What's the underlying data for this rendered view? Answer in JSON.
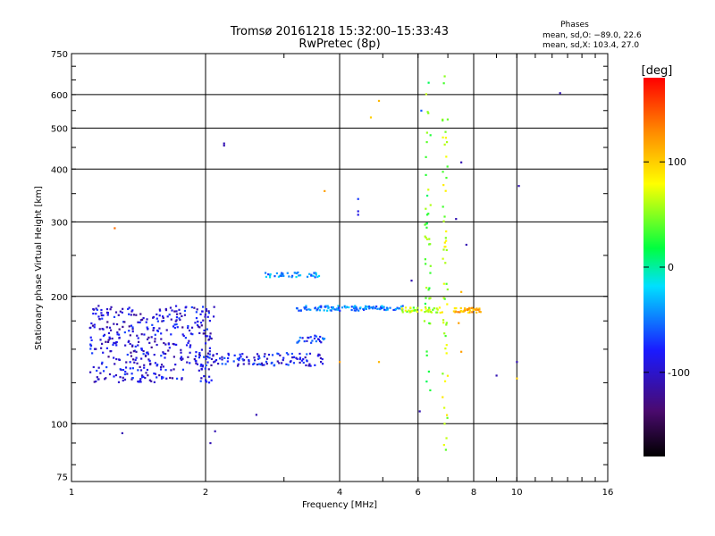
{
  "chart_data": {
    "type": "scatter",
    "title": "Tromsø 20161218 15:32:00–15:33:43",
    "subtitle": "RwPretec (8p)",
    "xlabel": "Frequency [MHz]",
    "ylabel": "Stationary phase Virtual Height [km]",
    "x_scale": "log",
    "y_scale": "log",
    "xlim": [
      1,
      16
    ],
    "ylim": [
      73,
      750
    ],
    "x_ticks": [
      1,
      2,
      4,
      6,
      8,
      10,
      16
    ],
    "y_ticks": [
      75,
      100,
      200,
      300,
      400,
      500,
      600,
      750
    ],
    "grid_x": [
      2,
      4,
      6,
      8,
      10
    ],
    "grid_y": [
      100,
      200,
      300,
      400,
      500,
      600
    ],
    "grid": true,
    "phases_box": {
      "title": "Phases",
      "line_o": "mean, sd,O: −89.0, 22.6",
      "line_x": "mean, sd,X: 103.4, 27.0"
    },
    "colorbar": {
      "label": "[deg]",
      "ticks": [
        100,
        0,
        -100
      ],
      "range": [
        -180,
        180
      ]
    },
    "clusters": [
      {
        "region": "low-band scatter",
        "x_range": [
          1.1,
          2.1
        ],
        "y_range": [
          125,
          190
        ],
        "phase": -95,
        "count": 420
      },
      {
        "region": "trace 2.0-3.7 MHz",
        "x_range": [
          2.0,
          3.7
        ],
        "y_range": [
          137,
          147
        ],
        "phase": -85,
        "count": 110
      },
      {
        "region": "trace 3.2-3.7 MHz",
        "x_range": [
          3.2,
          3.7
        ],
        "y_range": [
          155,
          162
        ],
        "phase": -70,
        "count": 25
      },
      {
        "region": "F layer 3.2-5.5 MHz",
        "x_range": [
          3.2,
          5.6
        ],
        "y_range": [
          185,
          190
        ],
        "phase": -50,
        "count": 110
      },
      {
        "region": "F layer 5.5-6.8 MHz",
        "x_range": [
          5.5,
          6.8
        ],
        "y_range": [
          183,
          189
        ],
        "phase": 60,
        "count": 40
      },
      {
        "region": "F layer 7.2-8.3 MHz",
        "x_range": [
          7.2,
          8.3
        ],
        "y_range": [
          183,
          188
        ],
        "phase": 110,
        "count": 40
      },
      {
        "region": "E-region trace 2.7-3.6 MHz",
        "x_range": [
          2.7,
          3.6
        ],
        "y_range": [
          222,
          228
        ],
        "phase": -40,
        "count": 40
      },
      {
        "region": "column 6.3 MHz",
        "x_range": [
          6.2,
          6.4
        ],
        "y_range": [
          120,
          650
        ],
        "phase": 40,
        "count": 45
      },
      {
        "region": "column 6.9 MHz",
        "x_range": [
          6.8,
          7.0
        ],
        "y_range": [
          80,
          680
        ],
        "phase": 60,
        "count": 55
      }
    ],
    "points": [
      {
        "x": 2.2,
        "y": 455,
        "phase": -110
      },
      {
        "x": 2.2,
        "y": 460,
        "phase": -110
      },
      {
        "x": 4.4,
        "y": 340,
        "phase": -70
      },
      {
        "x": 4.4,
        "y": 318,
        "phase": -90
      },
      {
        "x": 4.4,
        "y": 312,
        "phase": -90
      },
      {
        "x": 4.7,
        "y": 530,
        "phase": 100
      },
      {
        "x": 4.9,
        "y": 580,
        "phase": 110
      },
      {
        "x": 3.7,
        "y": 355,
        "phase": 120
      },
      {
        "x": 1.25,
        "y": 290,
        "phase": 140
      },
      {
        "x": 12.5,
        "y": 605,
        "phase": -110
      },
      {
        "x": 10.1,
        "y": 365,
        "phase": -110
      },
      {
        "x": 10.0,
        "y": 140,
        "phase": -110
      },
      {
        "x": 10.0,
        "y": 128,
        "phase": 100
      },
      {
        "x": 5.8,
        "y": 218,
        "phase": -110
      },
      {
        "x": 9.0,
        "y": 130,
        "phase": -110
      },
      {
        "x": 2.6,
        "y": 105,
        "phase": -110
      },
      {
        "x": 1.3,
        "y": 95,
        "phase": -110
      },
      {
        "x": 2.05,
        "y": 90,
        "phase": -110
      },
      {
        "x": 2.1,
        "y": 96,
        "phase": -110
      },
      {
        "x": 1.15,
        "y": 190,
        "phase": -110
      },
      {
        "x": 6.05,
        "y": 107,
        "phase": -110
      },
      {
        "x": 7.5,
        "y": 415,
        "phase": -110
      },
      {
        "x": 7.7,
        "y": 265,
        "phase": -110
      },
      {
        "x": 7.3,
        "y": 305,
        "phase": -110
      },
      {
        "x": 7.5,
        "y": 205,
        "phase": 110
      },
      {
        "x": 7.4,
        "y": 173,
        "phase": 120
      },
      {
        "x": 7.5,
        "y": 148,
        "phase": 120
      },
      {
        "x": 4.0,
        "y": 140,
        "phase": 120
      },
      {
        "x": 4.9,
        "y": 140,
        "phase": 110
      },
      {
        "x": 6.1,
        "y": 550,
        "phase": -60
      }
    ]
  }
}
